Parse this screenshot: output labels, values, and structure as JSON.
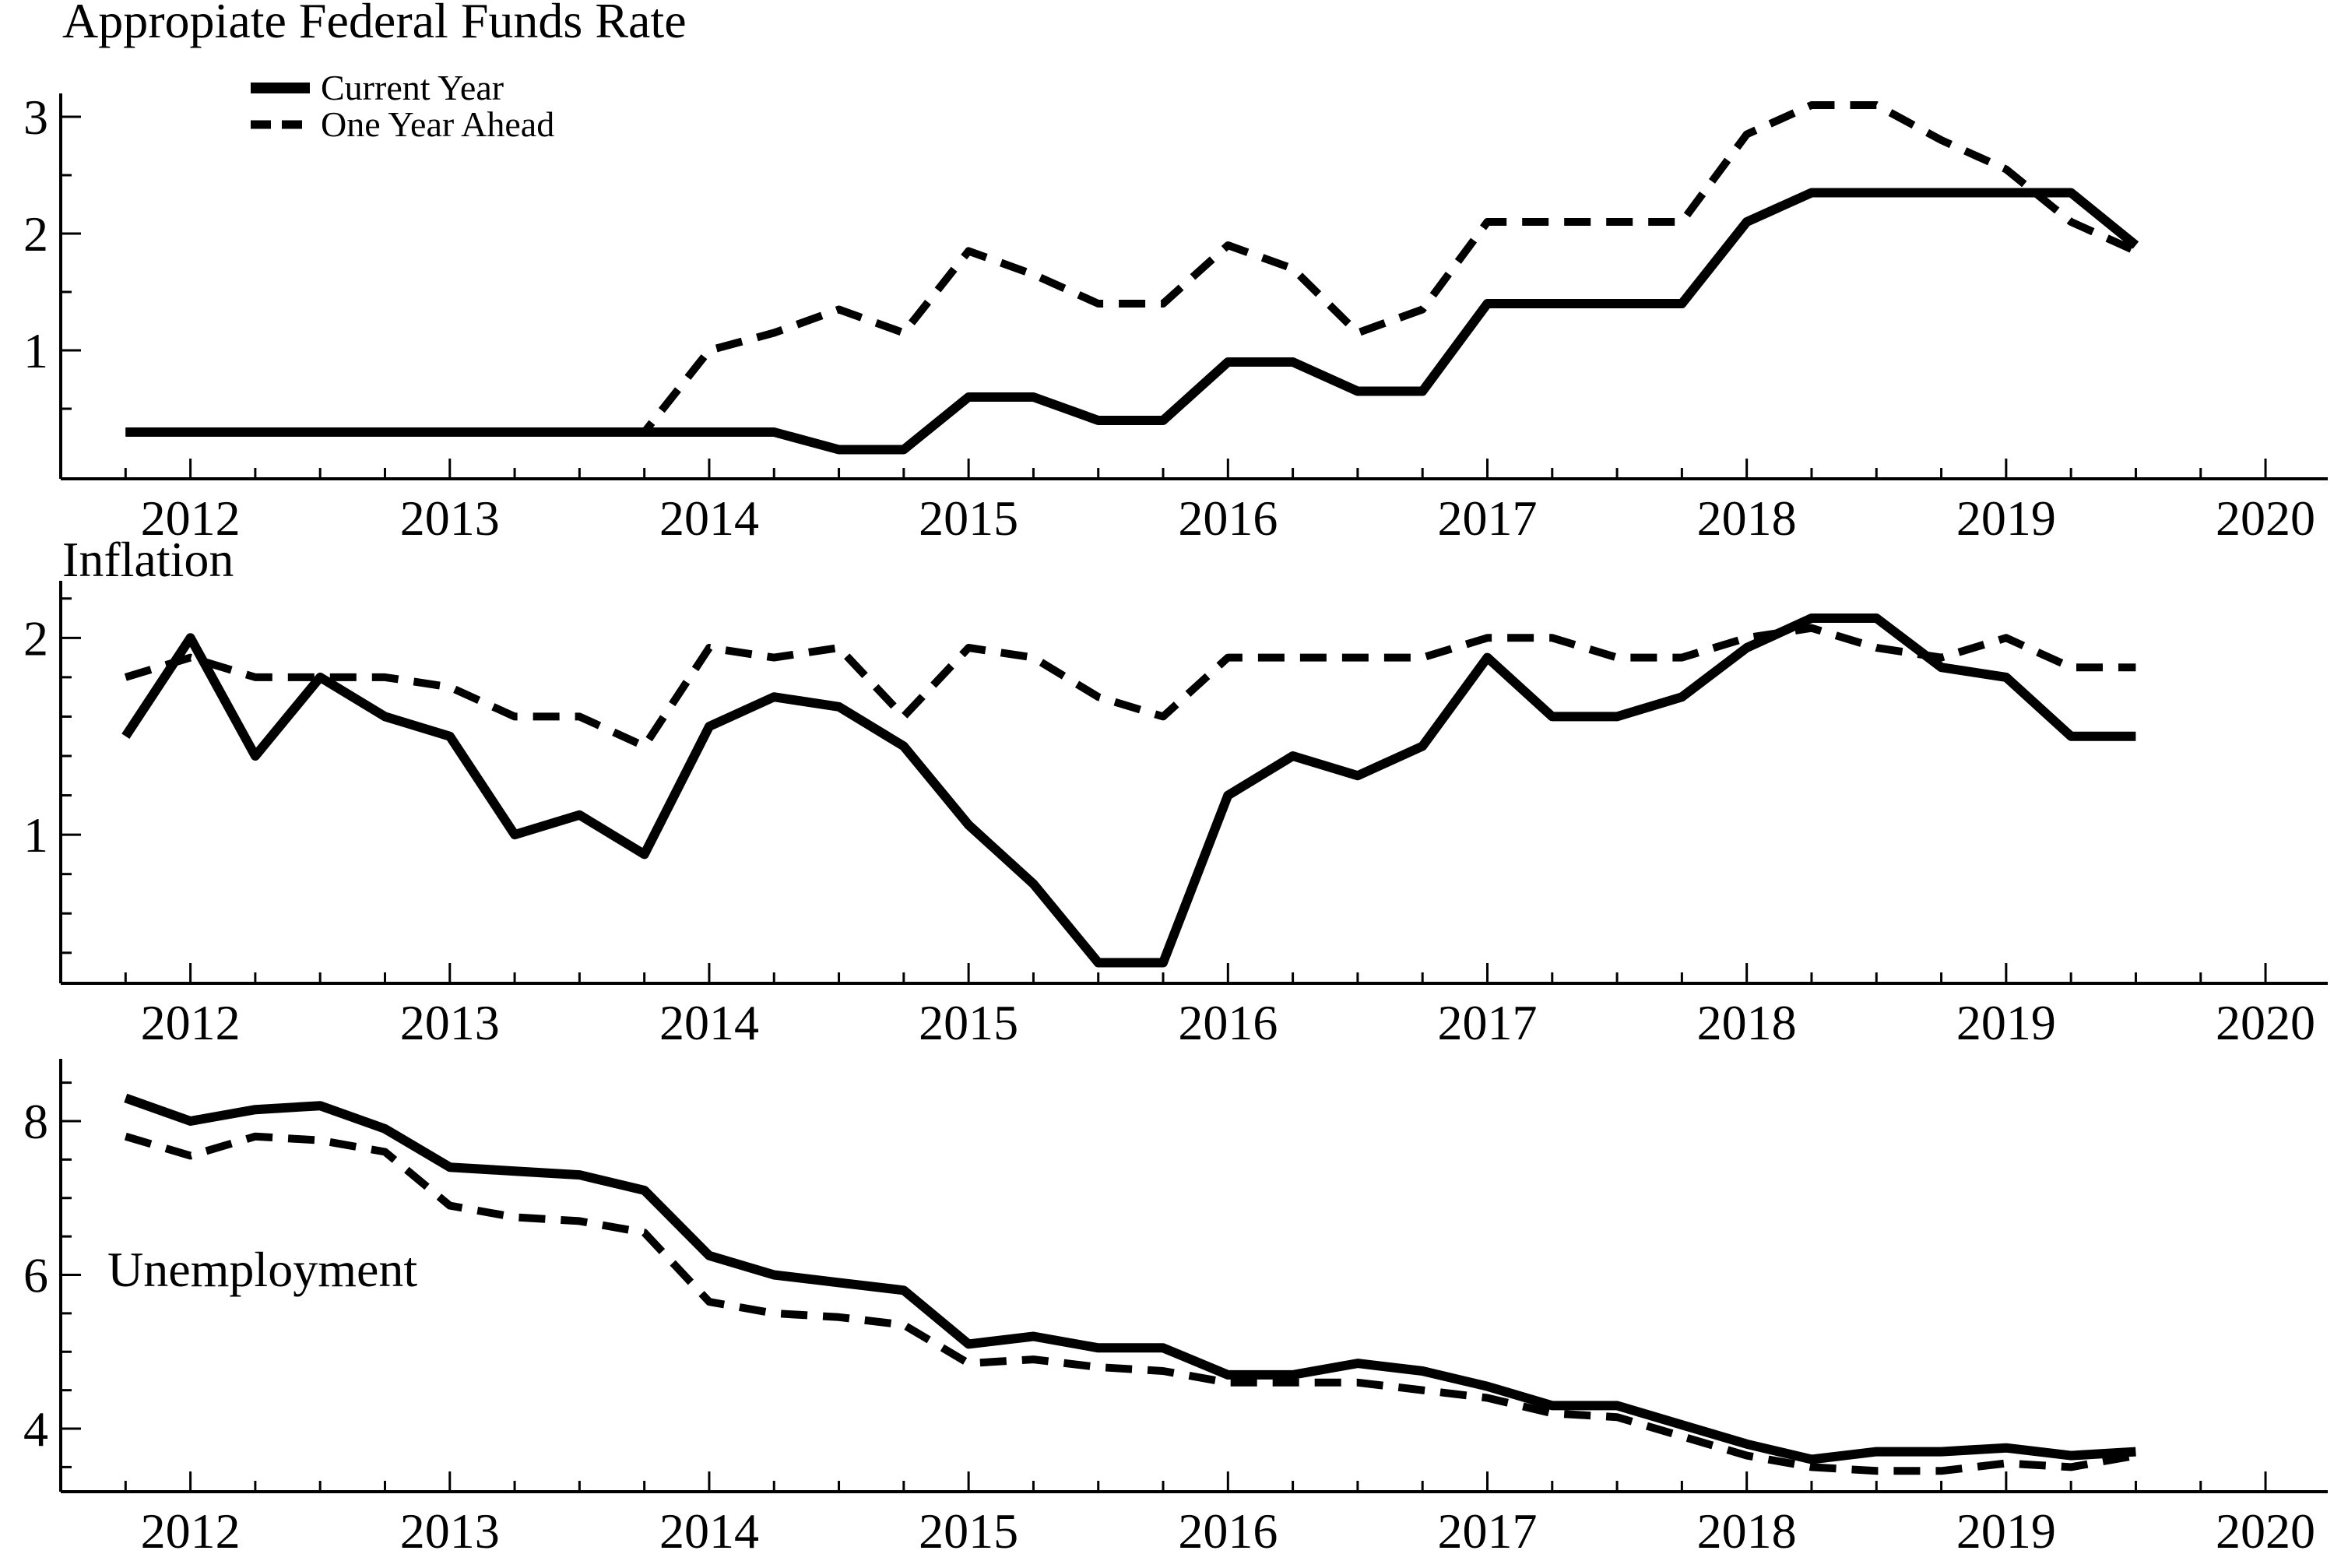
{
  "colors": {
    "line": "#000000",
    "background": "#ffffff"
  },
  "legend": {
    "items": [
      {
        "label": "Current Year",
        "style": "solid"
      },
      {
        "label": "One Year Ahead",
        "style": "dashed"
      }
    ]
  },
  "x_axis": {
    "year_tick_labels": [
      "2012",
      "2013",
      "2014",
      "2015",
      "2016",
      "2017",
      "2018",
      "2019",
      "2020"
    ],
    "xlim": [
      2011.5,
      2020.24
    ],
    "quarter_tick_step": 0.25
  },
  "chart_data": [
    {
      "type": "line",
      "title": "Appropiate Federal Funds Rate",
      "xlabel": "",
      "ylabel": "",
      "ylim": [
        -0.1,
        3.2
      ],
      "yticks_labeled": [
        1,
        2,
        3
      ],
      "yticks_minor": [
        0.5,
        1.5,
        2.5
      ],
      "legend_position": "upper-left-inside",
      "grid": false,
      "x": [
        2011.75,
        2012.0,
        2012.25,
        2012.5,
        2012.75,
        2013.0,
        2013.25,
        2013.5,
        2013.75,
        2014.0,
        2014.25,
        2014.5,
        2014.75,
        2015.0,
        2015.25,
        2015.5,
        2015.75,
        2016.0,
        2016.25,
        2016.5,
        2016.75,
        2017.0,
        2017.25,
        2017.5,
        2017.75,
        2018.0,
        2018.25,
        2018.5,
        2018.75,
        2019.0,
        2019.25,
        2019.5
      ],
      "series": [
        {
          "name": "One Year Ahead",
          "line": "dashed",
          "values": [
            0.3,
            0.3,
            0.3,
            0.3,
            0.3,
            0.3,
            0.3,
            0.3,
            0.3,
            1.0,
            1.15,
            1.35,
            1.15,
            1.85,
            1.65,
            1.4,
            1.4,
            1.9,
            1.7,
            1.15,
            1.35,
            2.1,
            2.1,
            2.1,
            2.1,
            2.85,
            3.1,
            3.1,
            2.8,
            2.55,
            2.1,
            1.85
          ]
        },
        {
          "name": "Current Year",
          "line": "solid",
          "values": [
            0.3,
            0.3,
            0.3,
            0.3,
            0.3,
            0.3,
            0.3,
            0.3,
            0.3,
            0.3,
            0.3,
            0.15,
            0.15,
            0.6,
            0.6,
            0.4,
            0.4,
            0.9,
            0.9,
            0.65,
            0.65,
            1.4,
            1.4,
            1.4,
            1.4,
            2.1,
            2.35,
            2.35,
            2.35,
            2.35,
            2.35,
            1.9
          ]
        }
      ]
    },
    {
      "type": "line",
      "title": "Inflation",
      "xlabel": "",
      "ylabel": "",
      "ylim": [
        0.245,
        2.29
      ],
      "yticks_labeled": [
        1,
        2
      ],
      "yticks_minor": [
        0.4,
        0.6,
        0.8,
        1.2,
        1.4,
        1.6,
        1.8,
        2.2
      ],
      "grid": false,
      "x": [
        2011.75,
        2012.0,
        2012.25,
        2012.5,
        2012.75,
        2013.0,
        2013.25,
        2013.5,
        2013.75,
        2014.0,
        2014.25,
        2014.5,
        2014.75,
        2015.0,
        2015.25,
        2015.5,
        2015.75,
        2016.0,
        2016.25,
        2016.5,
        2016.75,
        2017.0,
        2017.25,
        2017.5,
        2017.75,
        2018.0,
        2018.25,
        2018.5,
        2018.75,
        2019.0,
        2019.25,
        2019.5
      ],
      "series": [
        {
          "name": "One Year Ahead",
          "line": "dashed",
          "values": [
            1.8,
            1.9,
            1.8,
            1.8,
            1.8,
            1.75,
            1.6,
            1.6,
            1.45,
            1.95,
            1.9,
            1.95,
            1.6,
            1.95,
            1.9,
            1.7,
            1.6,
            1.9,
            1.9,
            1.9,
            1.9,
            2.0,
            2.0,
            1.9,
            1.9,
            2.0,
            2.05,
            1.95,
            1.9,
            2.0,
            1.85,
            1.85
          ]
        },
        {
          "name": "Current Year",
          "line": "solid",
          "values": [
            1.5,
            2.0,
            1.4,
            1.8,
            1.6,
            1.5,
            1.0,
            1.1,
            0.9,
            1.55,
            1.7,
            1.65,
            1.45,
            1.05,
            0.75,
            0.35,
            0.35,
            1.2,
            1.4,
            1.3,
            1.45,
            1.9,
            1.6,
            1.6,
            1.7,
            1.95,
            2.1,
            2.1,
            1.85,
            1.8,
            1.5,
            1.5
          ]
        }
      ]
    },
    {
      "type": "line",
      "title": "Unemployment",
      "xlabel": "",
      "ylabel": "",
      "ylim": [
        3.18,
        8.81
      ],
      "yticks_labeled": [
        4,
        6,
        8
      ],
      "yticks_minor": [
        3.5,
        4.5,
        5.0,
        5.5,
        6.5,
        7.0,
        7.5,
        8.5
      ],
      "grid": false,
      "x": [
        2011.75,
        2012.0,
        2012.25,
        2012.5,
        2012.75,
        2013.0,
        2013.25,
        2013.5,
        2013.75,
        2014.0,
        2014.25,
        2014.5,
        2014.75,
        2015.0,
        2015.25,
        2015.5,
        2015.75,
        2016.0,
        2016.25,
        2016.5,
        2016.75,
        2017.0,
        2017.25,
        2017.5,
        2017.75,
        2018.0,
        2018.25,
        2018.5,
        2018.75,
        2019.0,
        2019.25,
        2019.5
      ],
      "series": [
        {
          "name": "One Year Ahead",
          "line": "dashed",
          "values": [
            7.8,
            7.55,
            7.8,
            7.75,
            7.6,
            6.9,
            6.75,
            6.7,
            6.55,
            5.65,
            5.5,
            5.45,
            5.35,
            4.85,
            4.9,
            4.8,
            4.75,
            4.6,
            4.6,
            4.6,
            4.5,
            4.4,
            4.2,
            4.15,
            3.9,
            3.65,
            3.5,
            3.45,
            3.45,
            3.55,
            3.5,
            3.65
          ]
        },
        {
          "name": "Current Year",
          "line": "solid",
          "values": [
            8.3,
            8.0,
            8.15,
            8.2,
            7.9,
            7.4,
            7.35,
            7.3,
            7.1,
            6.25,
            6.0,
            5.9,
            5.8,
            5.1,
            5.2,
            5.05,
            5.05,
            4.7,
            4.7,
            4.85,
            4.75,
            4.55,
            4.3,
            4.3,
            4.05,
            3.8,
            3.6,
            3.7,
            3.7,
            3.75,
            3.65,
            3.7
          ]
        }
      ]
    }
  ]
}
